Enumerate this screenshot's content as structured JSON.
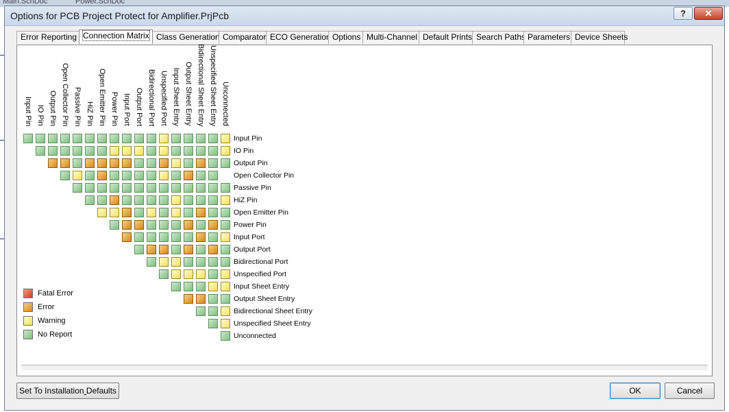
{
  "background_tabs": [
    "Main.SchDoc",
    "Power.SchDoc"
  ],
  "window": {
    "title": "Options for PCB Project Protect for Amplifier.PrjPcb"
  },
  "title_buttons": {
    "help": "?",
    "close": "✕"
  },
  "tabs": [
    {
      "label": "Error Reporting",
      "active": false
    },
    {
      "label": "Connection Matrix",
      "active": true
    },
    {
      "label": "Class Generation",
      "active": false
    },
    {
      "label": "Comparator",
      "active": false
    },
    {
      "label": "ECO Generation",
      "active": false
    },
    {
      "label": "Options",
      "active": false
    },
    {
      "label": "Multi-Channel",
      "active": false
    },
    {
      "label": "Default Prints",
      "active": false
    },
    {
      "label": "Search Paths",
      "active": false
    },
    {
      "label": "Parameters",
      "active": false
    },
    {
      "label": "Device Sheets",
      "active": false
    }
  ],
  "matrix": {
    "columns": [
      "Input Pin",
      "IO Pin",
      "Output Pin",
      "Open Collector Pin",
      "Passive Pin",
      "HiZ Pin",
      "Open Emitter Pin",
      "Power Pin",
      "Input Port",
      "Output Port",
      "Bidirectional Port",
      "Unspecified Port",
      "Input Sheet Entry",
      "Output Sheet Entry",
      "Bidirectional Sheet Entry",
      "Unspecified Sheet Entry",
      "Unconnected"
    ],
    "rows": [
      "Input Pin",
      "IO Pin",
      "Output Pin",
      "Open Collector Pin",
      "Passive Pin",
      "HiZ Pin",
      "Open Emitter Pin",
      "Power Pin",
      "Input Port",
      "Output Port",
      "Bidirectional Port",
      "Unspecified Port",
      "Input Sheet Entry",
      "Output Sheet Entry",
      "Bidirectional Sheet Entry",
      "Unspecified Sheet Entry",
      "Unconnected"
    ],
    "cells": [
      [
        "g",
        "g",
        "g",
        "g",
        "g",
        "g",
        "g",
        "g",
        "g",
        "g",
        "g",
        "y",
        "g",
        "g",
        "g",
        "g",
        "y"
      ],
      [
        "g",
        "g",
        "g",
        "g",
        "g",
        "g",
        "y",
        "y",
        "y",
        "g",
        "y",
        "g",
        "g",
        "g",
        "g",
        "y"
      ],
      [
        "o",
        "o",
        "g",
        "o",
        "o",
        "o",
        "o",
        "g",
        "g",
        "o",
        "y",
        "g",
        "o",
        "g",
        "g"
      ],
      [
        "g",
        "y",
        "g",
        "o",
        "g",
        "g",
        "g",
        "g",
        "y",
        "g",
        "o",
        "g",
        "g"
      ],
      [
        "g",
        "g",
        "g",
        "g",
        "g",
        "g",
        "g",
        "g",
        "g",
        "g",
        "g",
        "g",
        "g"
      ],
      [
        "g",
        "g",
        "o",
        "g",
        "g",
        "g",
        "g",
        "y",
        "g",
        "g",
        "g",
        "y"
      ],
      [
        "y",
        "y",
        "o",
        "g",
        "y",
        "g",
        "y",
        "g",
        "o",
        "g",
        "g"
      ],
      [
        "g",
        "o",
        "o",
        "g",
        "g",
        "g",
        "o",
        "g",
        "o",
        "g"
      ],
      [
        "o",
        "g",
        "g",
        "g",
        "g",
        "g",
        "o",
        "g",
        "y"
      ],
      [
        "g",
        "o",
        "o",
        "g",
        "o",
        "g",
        "o",
        "g"
      ],
      [
        "g",
        "y",
        "y",
        "g",
        "g",
        "g",
        "g"
      ],
      [
        "g",
        "y",
        "y",
        "y",
        "g",
        "y"
      ],
      [
        "g",
        "g",
        "g",
        "y",
        "y"
      ],
      [
        "o",
        "o",
        "g",
        "g"
      ],
      [
        "g",
        "g",
        "y"
      ],
      [
        "g",
        "y"
      ],
      [
        "g"
      ]
    ]
  },
  "legend": [
    {
      "label": "Fatal Error",
      "color": "r"
    },
    {
      "label": "Error",
      "color": "o"
    },
    {
      "label": "Warning",
      "color": "y"
    },
    {
      "label": "No Report",
      "color": "g"
    }
  ],
  "buttons": {
    "defaults": "Set To Installation Defaults",
    "defaults_accel_index": 19,
    "ok": "OK",
    "cancel": "Cancel"
  }
}
